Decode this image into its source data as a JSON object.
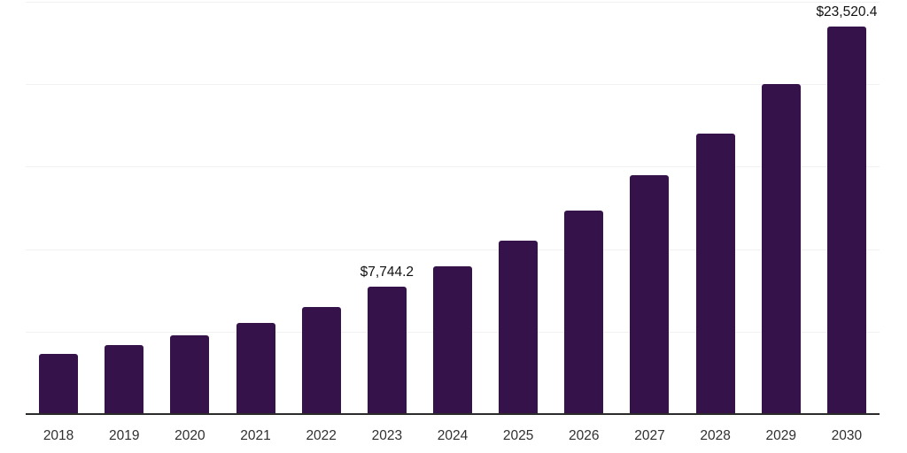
{
  "chart_data": {
    "type": "bar",
    "title": "",
    "xlabel": "",
    "ylabel": "",
    "categories": [
      "2018",
      "2019",
      "2020",
      "2021",
      "2022",
      "2023",
      "2024",
      "2025",
      "2026",
      "2027",
      "2028",
      "2029",
      "2030"
    ],
    "values": [
      3650,
      4190,
      4780,
      5530,
      6510,
      7744.2,
      8980,
      10500,
      12320,
      14470,
      17010,
      20010,
      23520.4
    ],
    "labels": [
      "",
      "",
      "",
      "",
      "",
      "$7,744.2",
      "",
      "",
      "",
      "",
      "",
      "",
      "$23,520.4"
    ],
    "ylim": [
      0,
      25000
    ],
    "gridline_values": [
      5000,
      10000,
      15000,
      20000,
      25000
    ],
    "grid": "horizontal-only",
    "legend_position": "none",
    "colors": {
      "bar": "#351249",
      "axis_line": "#2b2b2b",
      "gridline": "#f1f1f1",
      "value_label": "#111111",
      "tick_label": "#303030",
      "background": "#ffffff"
    }
  }
}
